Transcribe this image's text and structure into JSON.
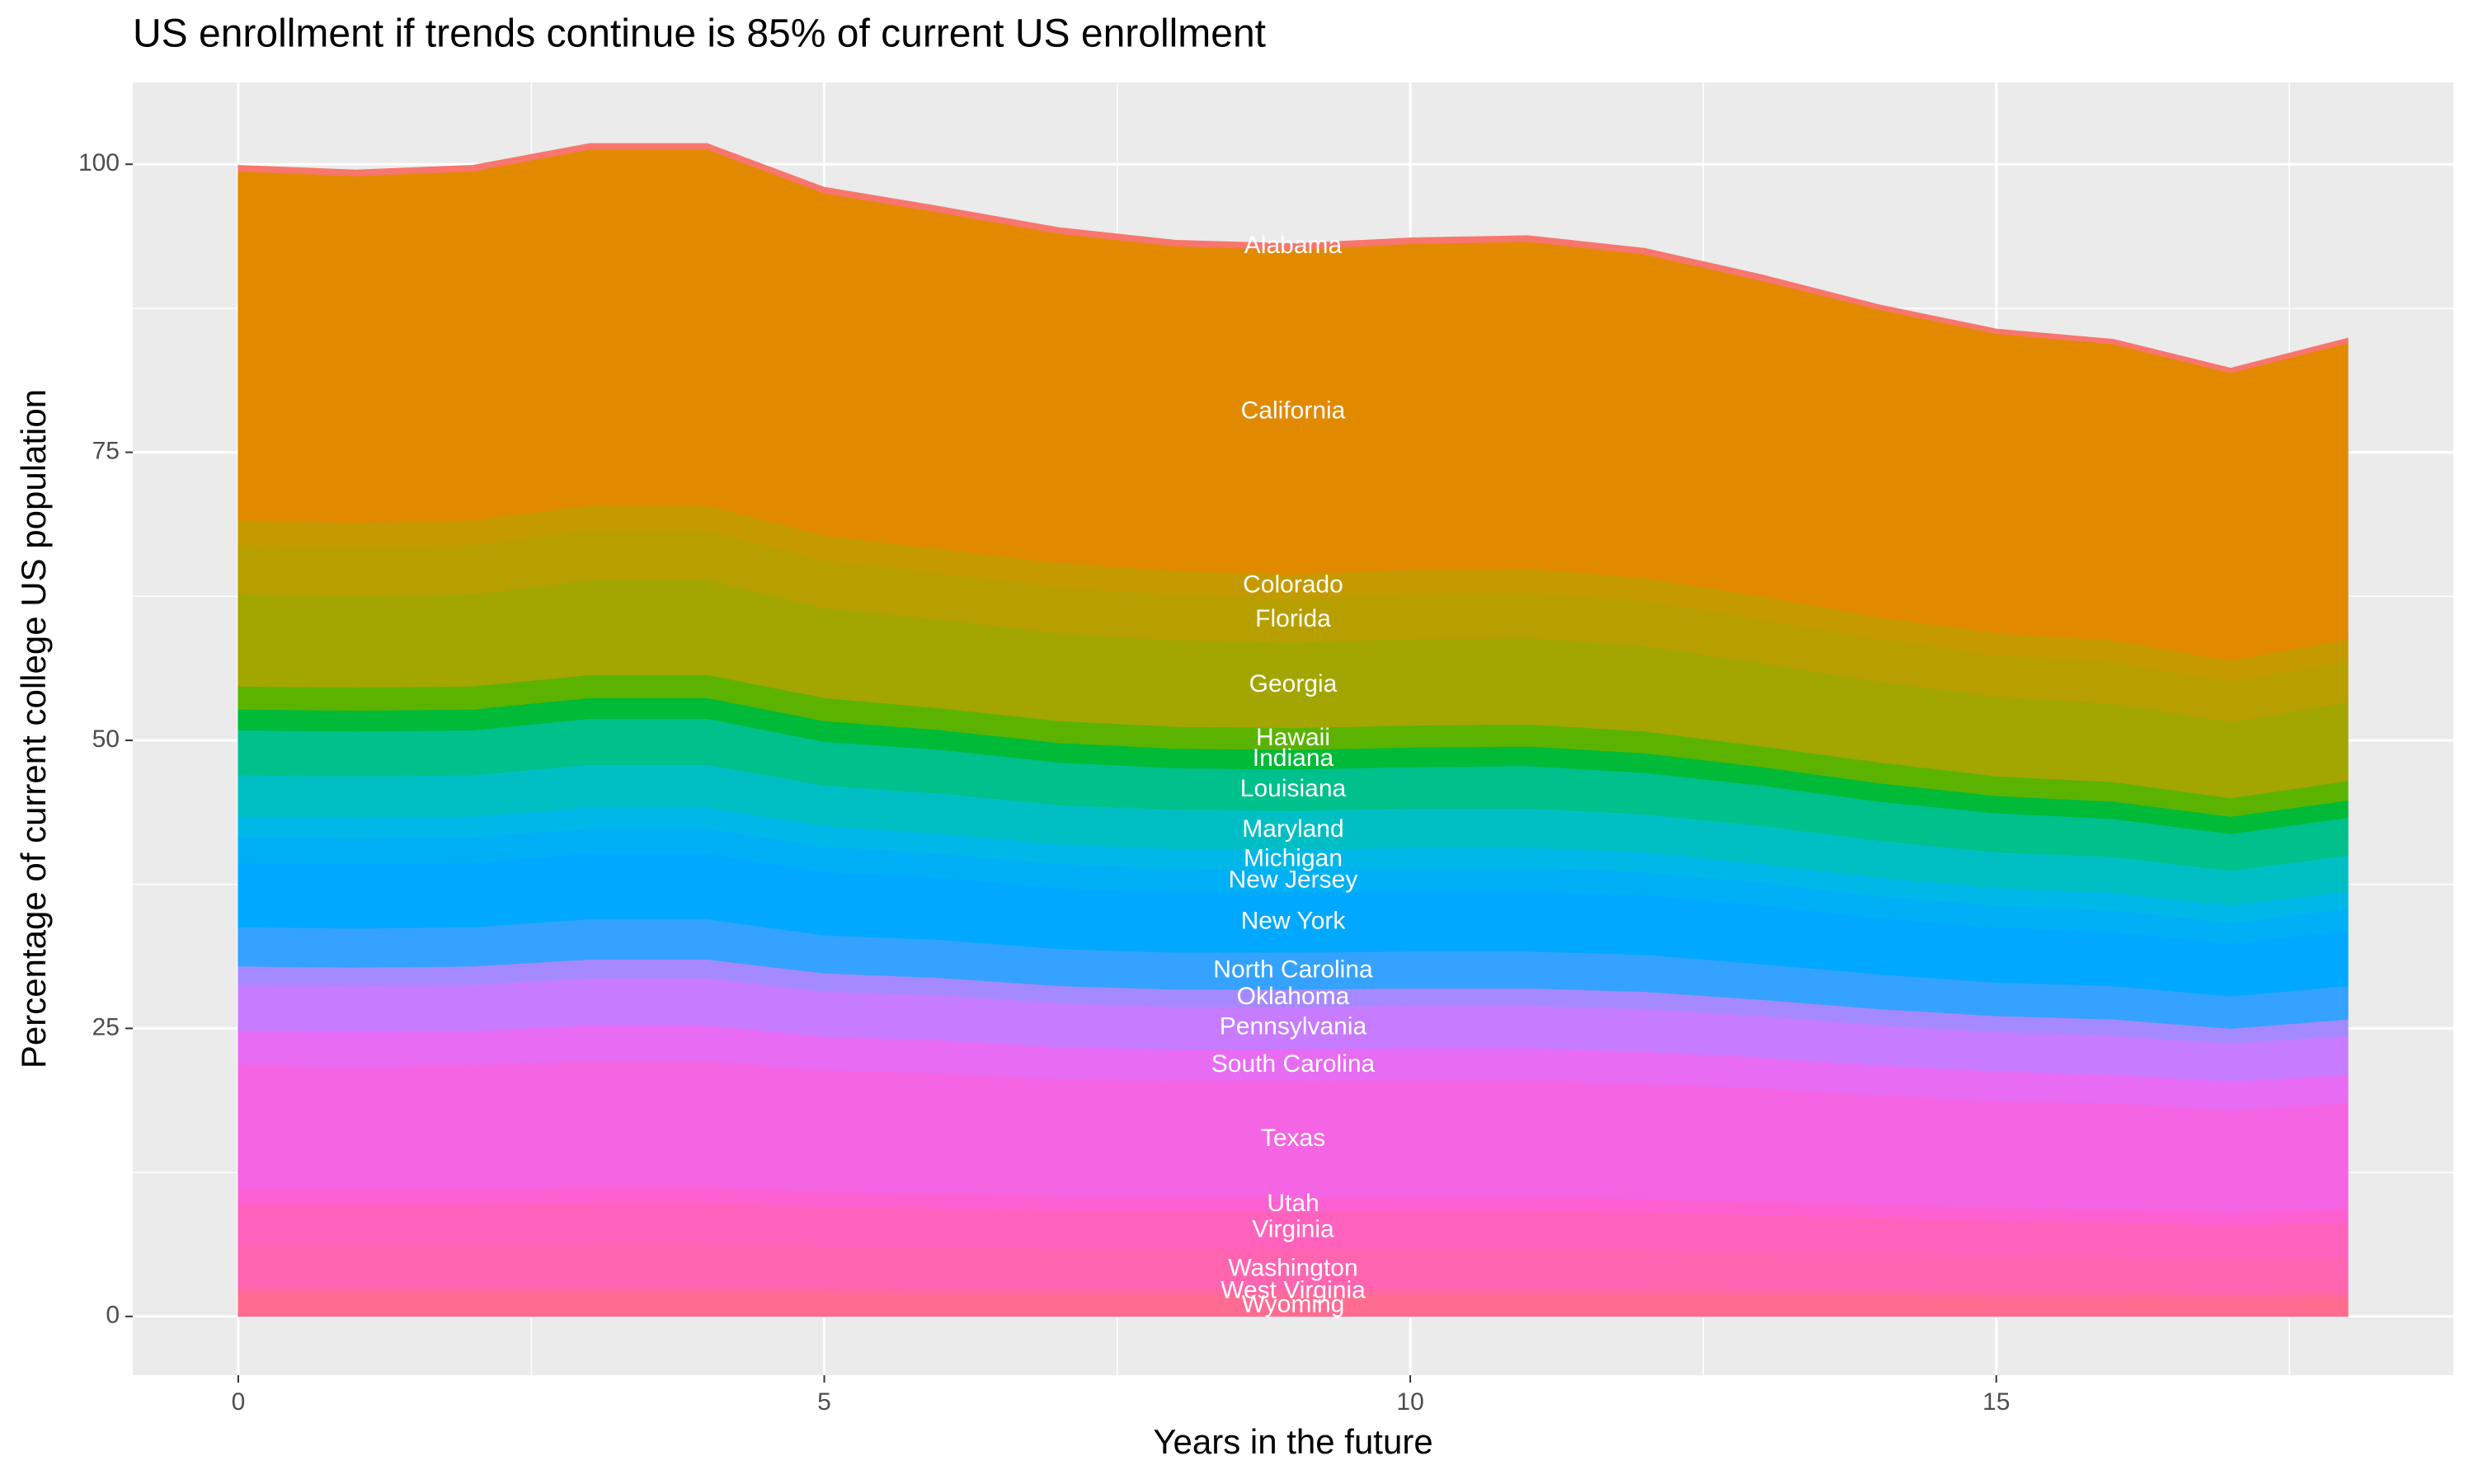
{
  "chart_data": {
    "type": "stacked-area",
    "title": "US enrollment if trends continue is 85% of current US enrollment",
    "x_label": "Years in the future",
    "y_label": "Percentage of current college US population",
    "x": [
      0,
      1,
      2,
      3,
      4,
      5,
      6,
      7,
      8,
      9,
      10,
      11,
      12,
      13,
      14,
      15,
      16,
      17,
      18
    ],
    "xlim": [
      -0.9,
      18.9
    ],
    "xticks": [
      0,
      5,
      10,
      15
    ],
    "ylim": [
      -5.1,
      107.1
    ],
    "yticks": [
      0,
      25,
      50,
      75,
      100
    ],
    "grid": true,
    "label_at_index": 9,
    "series": [
      {
        "name": "Wyoming",
        "color": "#FF6C91",
        "values": [
          2.0,
          2.0,
          2.0,
          2.0,
          2.0,
          2.0,
          1.9,
          1.9,
          1.9,
          1.9,
          1.9,
          1.9,
          1.9,
          1.8,
          1.8,
          1.7,
          1.7,
          1.6,
          1.7
        ]
      },
      {
        "name": "West Virginia",
        "color": "#FF689F",
        "values": [
          0.5,
          0.5,
          0.5,
          0.5,
          0.5,
          0.5,
          0.5,
          0.5,
          0.5,
          0.5,
          0.5,
          0.5,
          0.5,
          0.5,
          0.4,
          0.4,
          0.4,
          0.4,
          0.4
        ]
      },
      {
        "name": "Washington",
        "color": "#FF64B0",
        "values": [
          3.7,
          3.7,
          3.7,
          3.8,
          3.8,
          3.6,
          3.6,
          3.5,
          3.4,
          3.4,
          3.5,
          3.5,
          3.4,
          3.3,
          3.3,
          3.2,
          3.1,
          3.0,
          3.1
        ]
      },
      {
        "name": "Virginia",
        "color": "#FF62BC",
        "values": [
          3.5,
          3.5,
          3.5,
          3.6,
          3.6,
          3.4,
          3.4,
          3.3,
          3.3,
          3.3,
          3.3,
          3.3,
          3.2,
          3.2,
          3.1,
          3.0,
          3.0,
          2.9,
          3.0
        ]
      },
      {
        "name": "Utah",
        "color": "#FD61D1",
        "values": [
          1.3,
          1.3,
          1.3,
          1.3,
          1.3,
          1.3,
          1.3,
          1.2,
          1.2,
          1.2,
          1.2,
          1.2,
          1.2,
          1.2,
          1.1,
          1.1,
          1.1,
          1.1,
          1.1
        ]
      },
      {
        "name": "Texas",
        "color": "#F564E3",
        "values": [
          10.8,
          10.7,
          10.8,
          11.0,
          11.0,
          10.6,
          10.4,
          10.2,
          10.1,
          10.1,
          10.1,
          10.1,
          10.0,
          9.8,
          9.5,
          9.3,
          9.2,
          8.9,
          9.2
        ]
      },
      {
        "name": "South Carolina",
        "color": "#E76BF3",
        "values": [
          3.0,
          3.0,
          3.0,
          3.1,
          3.1,
          2.9,
          2.9,
          2.8,
          2.8,
          2.8,
          2.8,
          2.8,
          2.8,
          2.7,
          2.6,
          2.6,
          2.5,
          2.5,
          2.5
        ]
      },
      {
        "name": "Pennsylvania",
        "color": "#C77CFF",
        "values": [
          4.0,
          4.0,
          4.0,
          4.1,
          4.1,
          3.9,
          3.9,
          3.8,
          3.7,
          3.7,
          3.7,
          3.7,
          3.7,
          3.6,
          3.5,
          3.4,
          3.4,
          3.3,
          3.4
        ]
      },
      {
        "name": "Oklahoma",
        "color": "#A58AFF",
        "values": [
          1.6,
          1.6,
          1.6,
          1.6,
          1.6,
          1.6,
          1.5,
          1.5,
          1.5,
          1.5,
          1.5,
          1.5,
          1.5,
          1.4,
          1.4,
          1.4,
          1.4,
          1.3,
          1.4
        ]
      },
      {
        "name": "North Carolina",
        "color": "#35A2FF",
        "values": [
          3.4,
          3.4,
          3.4,
          3.5,
          3.5,
          3.3,
          3.3,
          3.2,
          3.2,
          3.2,
          3.2,
          3.2,
          3.2,
          3.1,
          3.0,
          2.9,
          2.9,
          2.8,
          2.9
        ]
      },
      {
        "name": "New York",
        "color": "#00A9FF",
        "values": [
          5.6,
          5.6,
          5.6,
          5.7,
          5.7,
          5.5,
          5.4,
          5.3,
          5.2,
          5.2,
          5.2,
          5.2,
          5.2,
          5.1,
          4.9,
          4.8,
          4.7,
          4.6,
          4.8
        ]
      },
      {
        "name": "New Jersey",
        "color": "#00B0F6",
        "values": [
          2.2,
          2.2,
          2.2,
          2.2,
          2.2,
          2.2,
          2.1,
          2.1,
          2.1,
          2.0,
          2.1,
          2.1,
          2.0,
          2.0,
          1.9,
          1.9,
          1.9,
          1.8,
          1.9
        ]
      },
      {
        "name": "Michigan",
        "color": "#00B8E7",
        "values": [
          1.8,
          1.8,
          1.8,
          1.8,
          1.8,
          1.8,
          1.7,
          1.7,
          1.7,
          1.7,
          1.7,
          1.7,
          1.7,
          1.6,
          1.6,
          1.5,
          1.5,
          1.5,
          1.5
        ]
      },
      {
        "name": "Maryland",
        "color": "#00BFC4",
        "values": [
          3.6,
          3.6,
          3.6,
          3.7,
          3.7,
          3.5,
          3.5,
          3.4,
          3.4,
          3.4,
          3.4,
          3.4,
          3.3,
          3.3,
          3.2,
          3.1,
          3.1,
          3.0,
          3.1
        ]
      },
      {
        "name": "Louisiana",
        "color": "#00C08B",
        "values": [
          3.9,
          3.9,
          3.9,
          4.0,
          4.0,
          3.8,
          3.8,
          3.7,
          3.6,
          3.6,
          3.6,
          3.7,
          3.6,
          3.5,
          3.4,
          3.4,
          3.3,
          3.2,
          3.3
        ]
      },
      {
        "name": "Indiana",
        "color": "#00BA38",
        "values": [
          1.8,
          1.8,
          1.8,
          1.8,
          1.8,
          1.8,
          1.7,
          1.7,
          1.7,
          1.7,
          1.7,
          1.7,
          1.7,
          1.6,
          1.6,
          1.5,
          1.5,
          1.5,
          1.5
        ]
      },
      {
        "name": "Hawaii",
        "color": "#5BB300",
        "values": [
          2.0,
          2.0,
          2.0,
          2.0,
          2.0,
          2.0,
          1.9,
          1.9,
          1.9,
          1.9,
          1.9,
          1.9,
          1.9,
          1.8,
          1.8,
          1.7,
          1.7,
          1.6,
          1.7
        ]
      },
      {
        "name": "Georgia",
        "color": "#A3A500",
        "values": [
          8.0,
          7.9,
          8.0,
          8.2,
          8.2,
          7.8,
          7.7,
          7.6,
          7.5,
          7.4,
          7.5,
          7.5,
          7.4,
          7.2,
          7.0,
          6.9,
          6.8,
          6.6,
          6.8
        ]
      },
      {
        "name": "Florida",
        "color": "#B79F00",
        "values": [
          4.2,
          4.2,
          4.2,
          4.3,
          4.3,
          4.1,
          4.0,
          4.0,
          3.9,
          3.9,
          3.9,
          3.9,
          3.9,
          3.8,
          3.7,
          3.6,
          3.6,
          3.5,
          3.6
        ]
      },
      {
        "name": "Colorado",
        "color": "#C49A00",
        "values": [
          2.2,
          2.2,
          2.2,
          2.2,
          2.2,
          2.2,
          2.1,
          2.1,
          2.1,
          2.0,
          2.1,
          2.1,
          2.0,
          2.0,
          1.9,
          1.9,
          1.9,
          1.8,
          1.9
        ]
      },
      {
        "name": "California",
        "color": "#E18A00",
        "values": [
          30.3,
          30.1,
          30.3,
          30.9,
          30.9,
          29.7,
          29.2,
          28.6,
          28.2,
          28.2,
          28.3,
          28.4,
          28.1,
          27.4,
          26.7,
          26.0,
          25.7,
          25.0,
          25.7
        ]
      },
      {
        "name": "Alabama",
        "color": "#F8766D",
        "values": [
          0.5,
          0.5,
          0.5,
          0.5,
          0.5,
          0.5,
          0.5,
          0.5,
          0.5,
          0.5,
          0.5,
          0.5,
          0.5,
          0.5,
          0.4,
          0.4,
          0.4,
          0.4,
          0.4
        ]
      }
    ]
  }
}
